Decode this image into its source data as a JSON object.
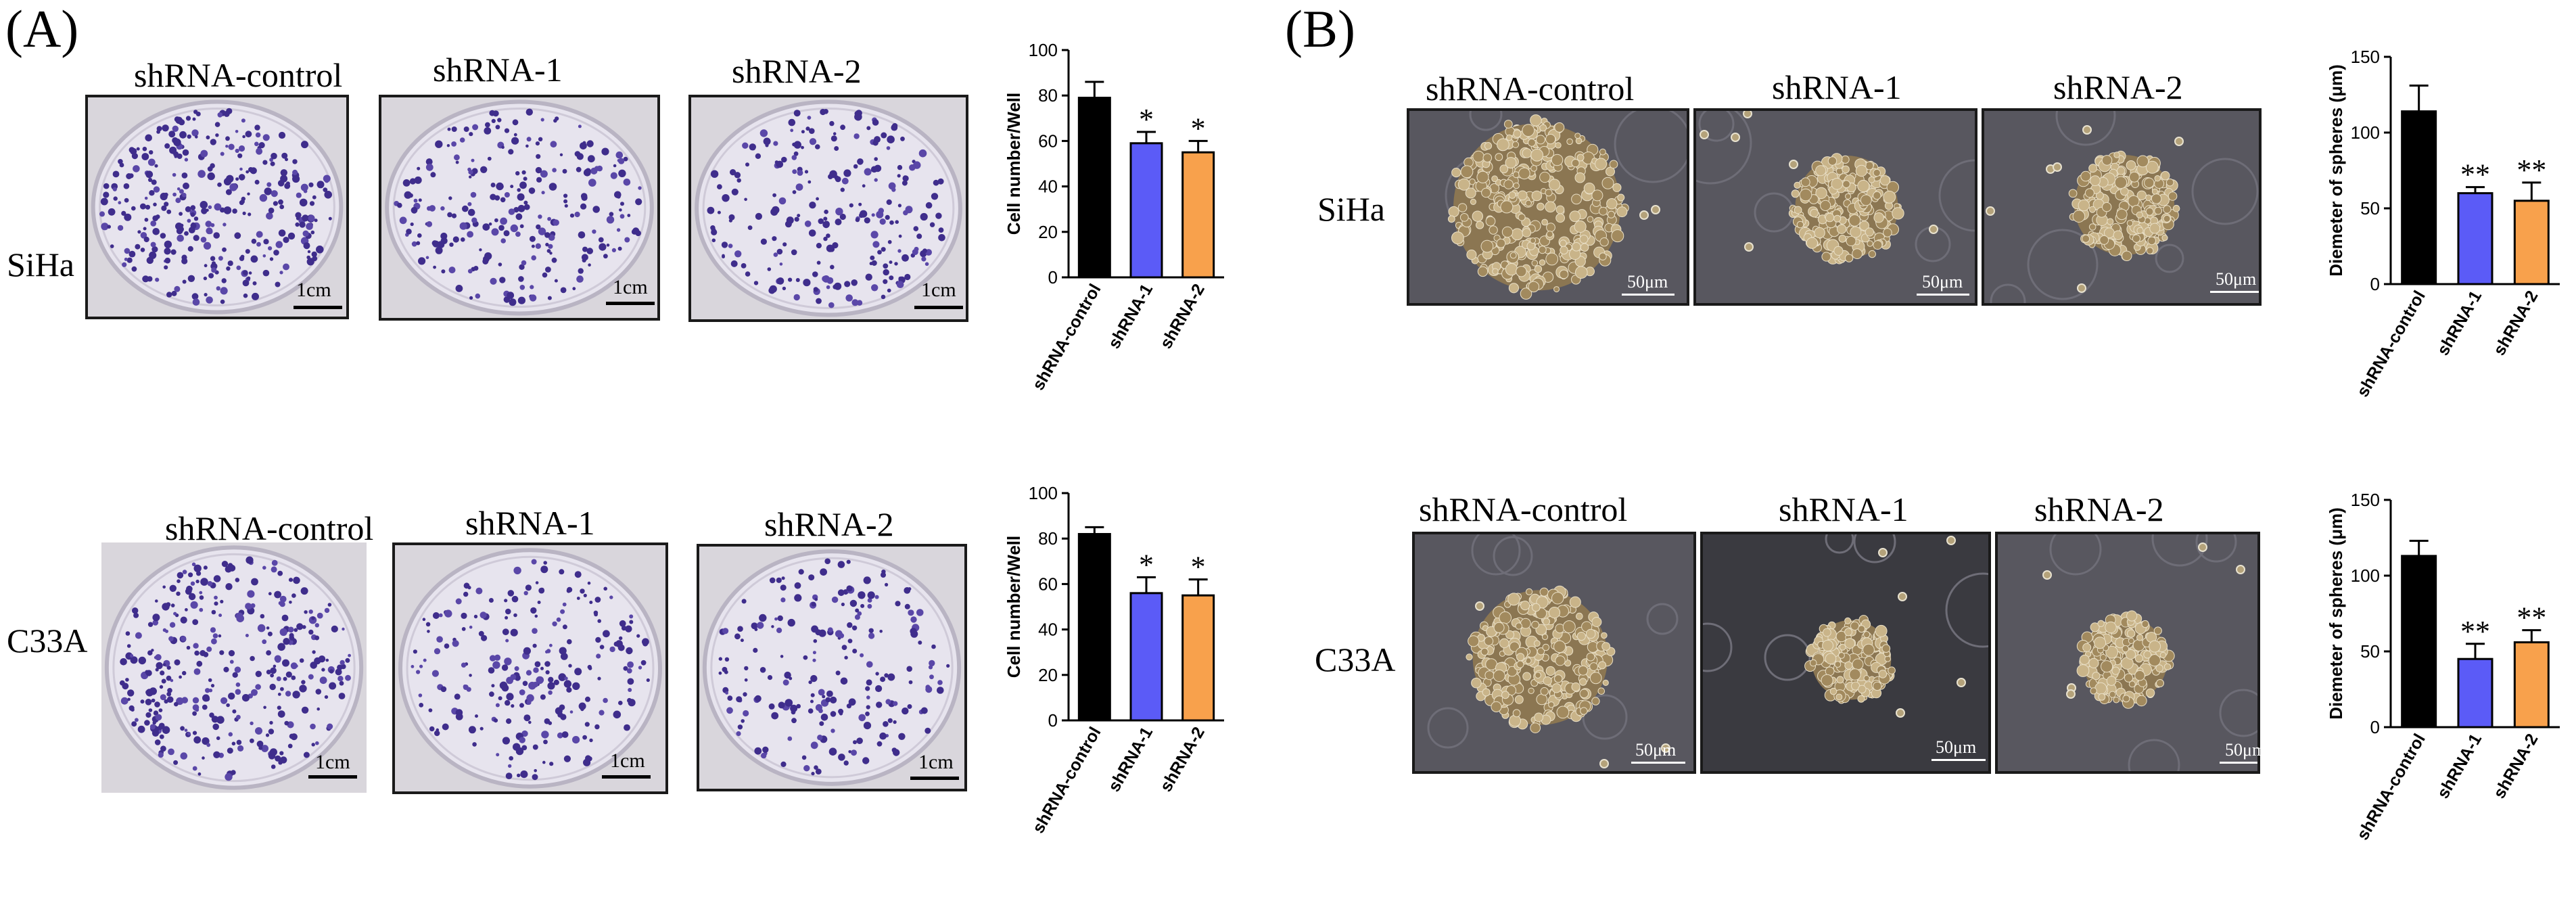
{
  "panels": {
    "A": {
      "label": "(A)",
      "rows": [
        {
          "cell_line": "SiHa",
          "captions": [
            "shRNA-control",
            "shRNA-1",
            "shRNA-2"
          ],
          "scale_bar": "1cm"
        },
        {
          "cell_line": "C33A",
          "captions": [
            "shRNA-control",
            "shRNA-1",
            "shRNA-2"
          ],
          "scale_bar": "1cm"
        }
      ]
    },
    "B": {
      "label": "(B)",
      "rows": [
        {
          "cell_line": "SiHa",
          "captions": [
            "shRNA-control",
            "shRNA-1",
            "shRNA-2"
          ],
          "scale_bar": "50μm"
        },
        {
          "cell_line": "C33A",
          "captions": [
            "shRNA-control",
            "shRNA-1",
            "shRNA-2"
          ],
          "scale_bar": "50μm"
        }
      ]
    }
  },
  "chart_data": [
    {
      "type": "bar",
      "categories": [
        "shRNA-control",
        "shRNA-1",
        "shRNA-2"
      ],
      "values": [
        79,
        59,
        55
      ],
      "errors": [
        7,
        5,
        5
      ],
      "significance": [
        "",
        "*",
        "*"
      ],
      "ylabel": "Cell number/Well",
      "ylim": [
        0,
        100
      ],
      "yticks": [
        0,
        20,
        40,
        60,
        80,
        100
      ],
      "colors": [
        "#000000",
        "#5b5bf7",
        "#f8a14c"
      ]
    },
    {
      "type": "bar",
      "categories": [
        "shRNA-control",
        "shRNA-1",
        "shRNA-2"
      ],
      "values": [
        82,
        56,
        55
      ],
      "errors": [
        3,
        7,
        7
      ],
      "significance": [
        "",
        "*",
        "*"
      ],
      "ylabel": "Cell number/Well",
      "ylim": [
        0,
        100
      ],
      "yticks": [
        0,
        20,
        40,
        60,
        80,
        100
      ],
      "colors": [
        "#000000",
        "#5b5bf7",
        "#f8a14c"
      ]
    },
    {
      "type": "bar",
      "categories": [
        "shRNA-control",
        "shRNA-1",
        "shRNA-2"
      ],
      "values": [
        114,
        60,
        55
      ],
      "errors": [
        17,
        4,
        12
      ],
      "significance": [
        "",
        "**",
        "**"
      ],
      "ylabel": "Diemeter of spheres (μm)",
      "ylim": [
        0,
        150
      ],
      "yticks": [
        0,
        50,
        100,
        150
      ],
      "colors": [
        "#000000",
        "#5b5bf7",
        "#f8a14c"
      ]
    },
    {
      "type": "bar",
      "categories": [
        "shRNA-control",
        "shRNA-1",
        "shRNA-2"
      ],
      "values": [
        113,
        45,
        56
      ],
      "errors": [
        10,
        10,
        8
      ],
      "significance": [
        "",
        "**",
        "**"
      ],
      "ylabel": "Diemeter of spheres (μm)",
      "ylim": [
        0,
        150
      ],
      "yticks": [
        0,
        50,
        100,
        150
      ],
      "colors": [
        "#000000",
        "#5b5bf7",
        "#f8a14c"
      ]
    }
  ]
}
